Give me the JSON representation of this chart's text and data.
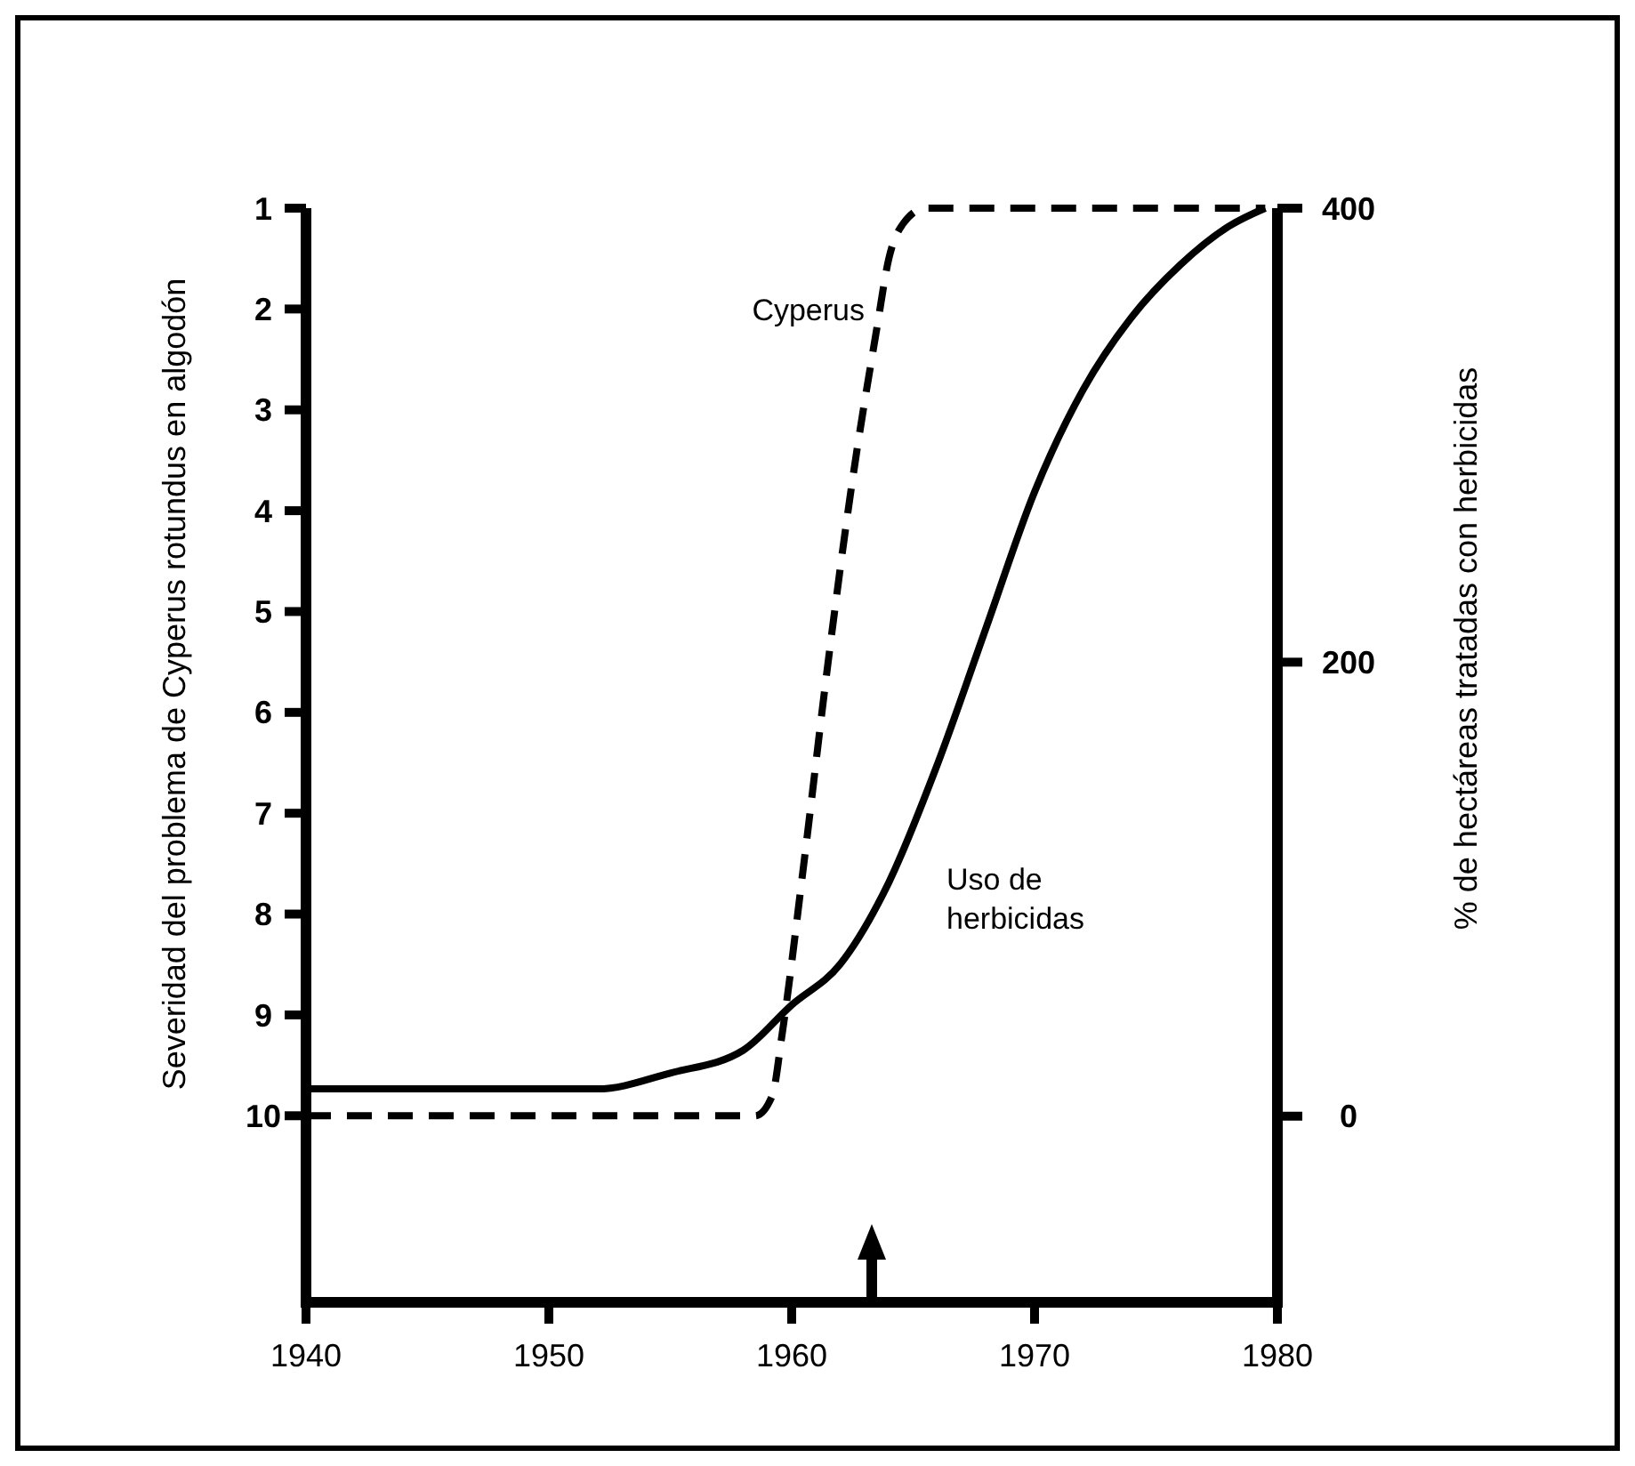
{
  "chart_data": {
    "type": "line",
    "xlabel": null,
    "ylabel": "Severidad del problema de Cyperus rotundus en algodón",
    "y2label": "% de hectáreas tratadas con herbicidas",
    "xlim": [
      1940,
      1980
    ],
    "xticks": [
      1940,
      1950,
      1960,
      1970,
      1980
    ],
    "ylim": [
      11.85,
      1
    ],
    "yticks": [
      1,
      2,
      3,
      4,
      5,
      6,
      7,
      8,
      9,
      10
    ],
    "y2lim": [
      -82,
      400
    ],
    "y2ticks": [
      0,
      200,
      400
    ],
    "grid": false,
    "marker": "none",
    "series": [
      {
        "name": "Cyperus",
        "color": "#000000",
        "line_style": "dashed",
        "x": [
          1940,
          1958.5,
          1959.2,
          1959.6,
          1960.5,
          1961.5,
          1962.5,
          1963.5,
          1964,
          1964.6,
          1965.5,
          1979.5
        ],
        "values": [
          10,
          10,
          9.8,
          9.2,
          7.5,
          5.5,
          3.7,
          2.2,
          1.5,
          1.15,
          1,
          1
        ]
      },
      {
        "name": "Uso de herbicidas",
        "color": "#000000",
        "line_style": "solid",
        "axis": "y2",
        "x": [
          1940,
          1952,
          1955,
          1958,
          1960,
          1962,
          1964,
          1966,
          1968,
          1970,
          1972,
          1974,
          1976,
          1978,
          1979.5
        ],
        "values": [
          12,
          12,
          19,
          29,
          49,
          67,
          103,
          155,
          215,
          275,
          320,
          352,
          375,
          392,
          400
        ]
      }
    ]
  }
}
